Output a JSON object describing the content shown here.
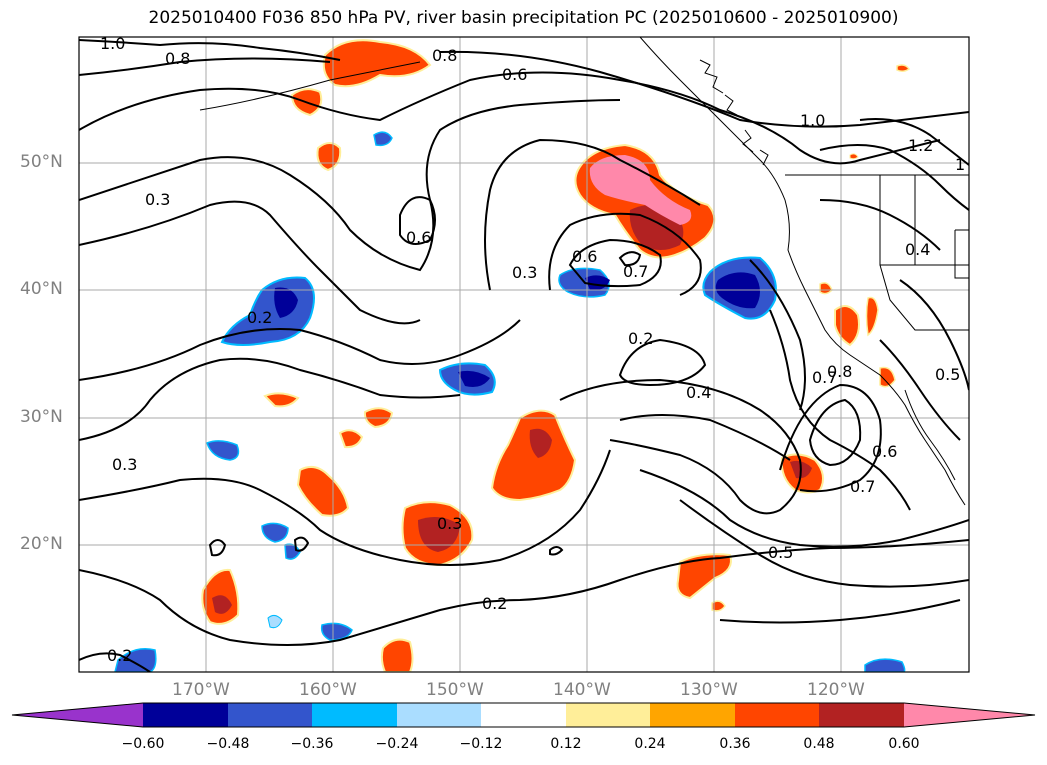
{
  "title": "2025010400 F036 850 hPa PV, river basin precipitation PC (2025010600 - 2025010900)",
  "map": {
    "lon_labels": [
      "170°W",
      "160°W",
      "150°W",
      "140°W",
      "130°W",
      "120°W"
    ],
    "lat_labels": [
      "50°N",
      "40°N",
      "30°N",
      "20°N"
    ],
    "contour_labels": [
      "1.0",
      "0.8",
      "0.8",
      "0.6",
      "1.0",
      "1.2",
      "1",
      "0.3",
      "0.6",
      "0.3",
      "0.6",
      "0.7",
      "0.4",
      "0.2",
      "0.2",
      "0.4",
      "0.7",
      "0.8",
      "0.5",
      "0.6",
      "0.7",
      "0.3",
      "0.3",
      "0.5",
      "0.2",
      "0.2"
    ]
  },
  "colorbar": {
    "tick_labels": [
      "−0.60",
      "−0.48",
      "−0.36",
      "−0.24",
      "−0.12",
      "0.12",
      "0.24",
      "0.36",
      "0.48",
      "0.60"
    ],
    "colors": {
      "extend_low": "#9933cc",
      "neg_060": "#000099",
      "neg_048": "#3355cc",
      "neg_036": "#00bbff",
      "neg_024": "#aaddff",
      "neutral": "#ffffff",
      "pos_012": "#ffee99",
      "pos_024": "#ffa500",
      "pos_036": "#ff4500",
      "pos_048": "#b22222",
      "extend_high": "#ff88aa"
    }
  }
}
